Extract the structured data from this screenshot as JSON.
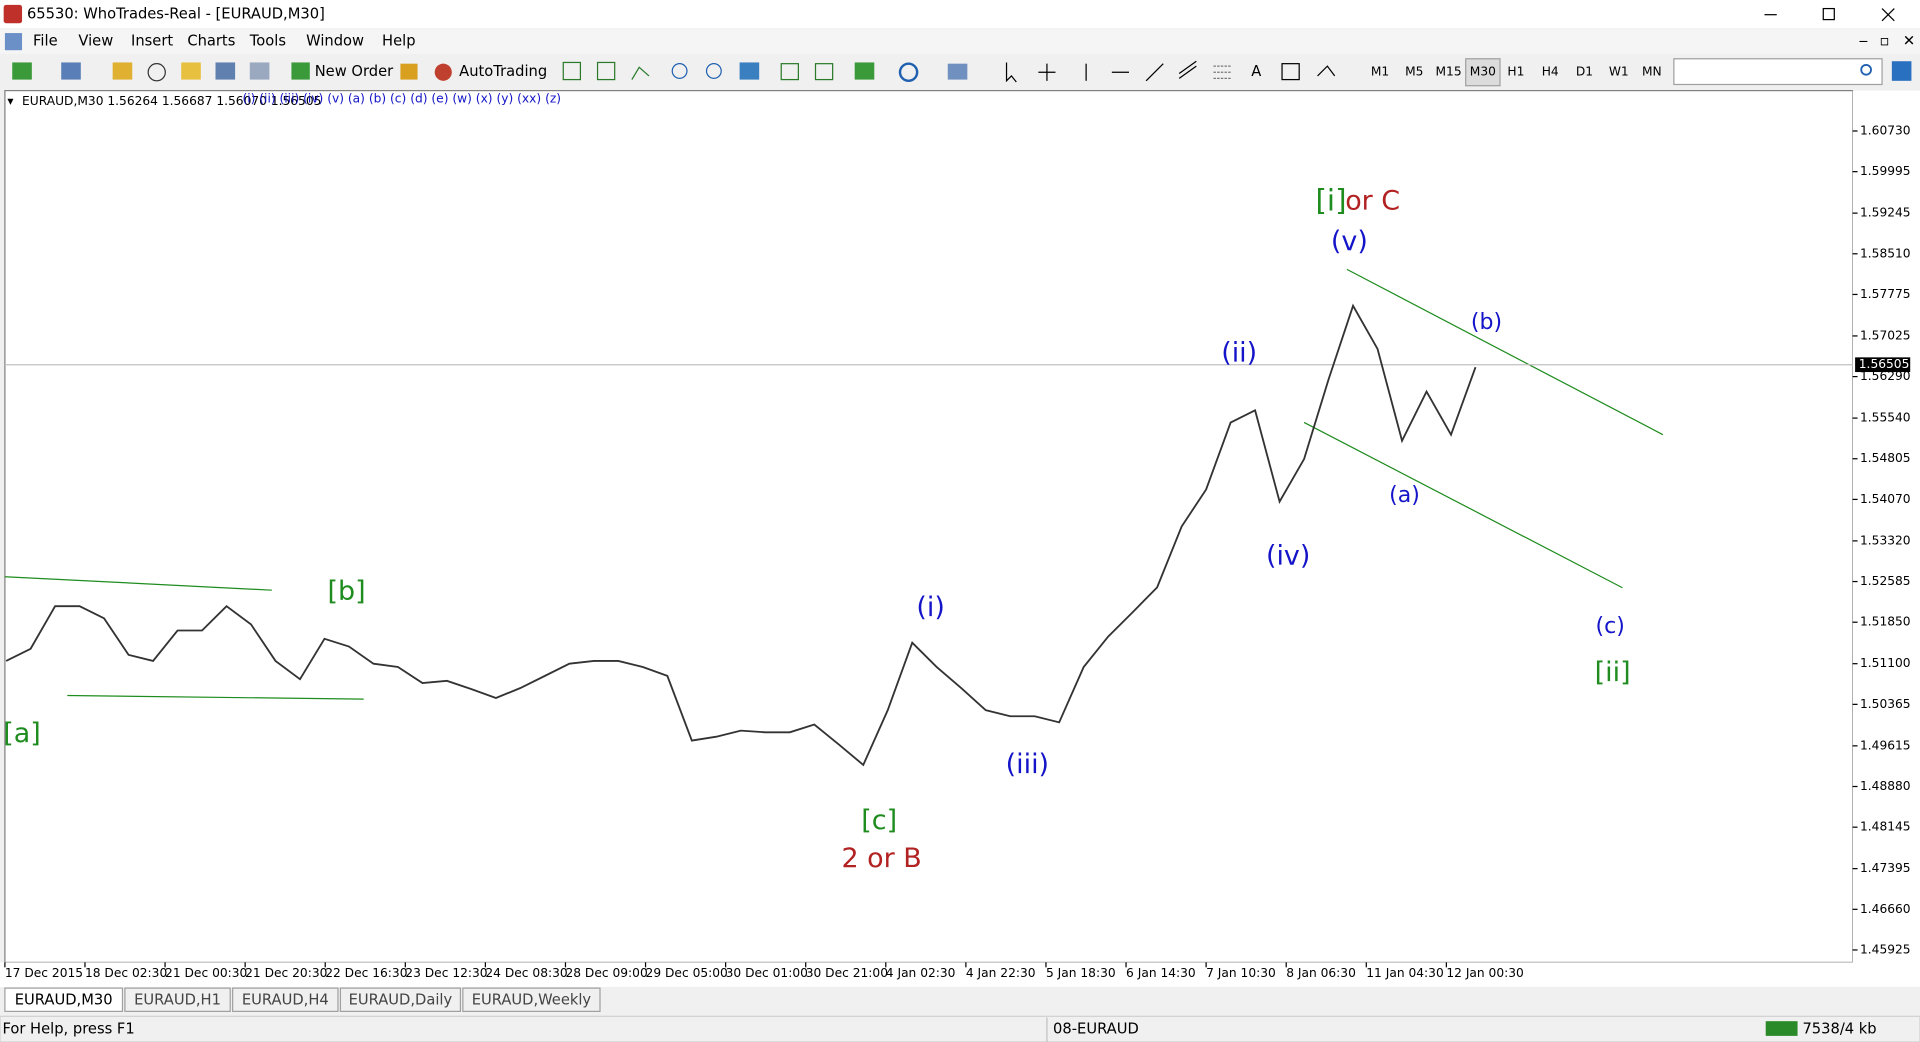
{
  "window": {
    "title": "65530: WhoTrades-Real - [EURAUD,M30]"
  },
  "menu": [
    "File",
    "View",
    "Insert",
    "Charts",
    "Tools",
    "Window",
    "Help"
  ],
  "toolbar": {
    "new_order": "New Order",
    "auto_trading": "AutoTrading",
    "timeframes": [
      "M1",
      "M5",
      "M15",
      "M30",
      "H1",
      "H4",
      "D1",
      "W1",
      "MN"
    ]
  },
  "chart": {
    "header": "EURAUD,M30  1.56264 1.56687 1.56070 1.56505",
    "wave_tools": "(i) (ii) (iii) (iv) (v) (a) (b) (c) (d) (e) (w) (x) (y) (xx) (z)",
    "ylim": [
      1.457,
      1.6146
    ],
    "price_ticks": [
      {
        "value": 1.6073,
        "label": "1.60730"
      },
      1.59995,
      1.59245,
      {
        "value": 1.5851,
        "label": "1.58510"
      },
      1.57775,
      1.57025,
      {
        "value": 1.5629,
        "label": "1.56290"
      },
      {
        "value": 1.5554,
        "label": "1.55540"
      },
      1.54805,
      {
        "value": 1.5407,
        "label": "1.54070"
      },
      {
        "value": 1.5332,
        "label": "1.53320"
      },
      1.52585,
      {
        "value": 1.5185,
        "label": "1.51850"
      },
      {
        "value": 1.511,
        "label": "1.51100"
      },
      1.50365,
      1.49615,
      {
        "value": 1.4888,
        "label": "1.48880"
      },
      1.48145,
      1.47395,
      {
        "value": 1.4666,
        "label": "1.46660"
      },
      1.45925
    ],
    "current_price": 1.56505,
    "time_labels": [
      "17 Dec 2015",
      "18 Dec 02:30",
      "21 Dec 00:30",
      "21 Dec 20:30",
      "22 Dec 16:30",
      "23 Dec 12:30",
      "24 Dec 08:30",
      "28 Dec 09:00",
      "29 Dec 05:00",
      "30 Dec 01:00",
      "30 Dec 21:00",
      "4 Jan 02:30",
      "4 Jan 22:30",
      "5 Jan 18:30",
      "6 Jan 14:30",
      "7 Jan 10:30",
      "8 Jan 06:30",
      "11 Jan 04:30",
      "12 Jan 00:30"
    ],
    "closes": [
      1.5115,
      1.5137,
      1.5214,
      1.5214,
      1.5192,
      1.5126,
      1.5115,
      1.517,
      1.517,
      1.5214,
      1.5181,
      1.5115,
      1.5082,
      1.5155,
      1.5141,
      1.511,
      1.5104,
      1.5075,
      1.5079,
      1.5064,
      1.5048,
      1.5066,
      1.5088,
      1.511,
      1.5115,
      1.5115,
      1.5104,
      1.5088,
      1.4971,
      1.4978,
      1.4989,
      1.4986,
      1.4986,
      1.5,
      1.4964,
      1.4927,
      1.5026,
      1.5148,
      1.5104,
      1.5066,
      1.5026,
      1.5015,
      1.5015,
      1.5004,
      1.5104,
      1.5159,
      1.5203,
      1.5248,
      1.5358,
      1.5425,
      1.5546,
      1.5568,
      1.5403,
      1.548,
      1.5624,
      1.5757,
      1.5679,
      1.5513,
      1.5602,
      1.5524,
      1.5646
    ],
    "line_color": "#333333",
    "wave_labels": [
      {
        "text": "[i]",
        "color": "#1e8c1e"
      },
      {
        "text": "or C",
        "color": "#b22222"
      },
      {
        "text": "(v)",
        "color": "#1414c8"
      },
      {
        "text": "(b)",
        "color": "#1414c8"
      },
      {
        "text": "(ii)",
        "color": "#1414c8"
      },
      {
        "text": "(a)",
        "color": "#1414c8"
      },
      {
        "text": "(iv)",
        "color": "#1414c8"
      },
      {
        "text": "(c)",
        "color": "#1414c8"
      },
      {
        "text": "[ii]",
        "color": "#1e8c1e"
      },
      {
        "text": "[b]",
        "color": "#1e8c1e"
      },
      {
        "text": "(i)",
        "color": "#1414c8"
      },
      {
        "text": "[a]",
        "color": "#1e8c1e"
      },
      {
        "text": "(iii)",
        "color": "#1414c8"
      },
      {
        "text": "[c]",
        "color": "#1e8c1e"
      },
      {
        "text": "2 or B",
        "color": "#b22222"
      }
    ]
  },
  "tabs": [
    "EURAUD,M30",
    "EURAUD,H1",
    "EURAUD,H4",
    "EURAUD,Daily",
    "EURAUD,Weekly"
  ],
  "status": {
    "help": "For Help, press F1",
    "profile": "08-EURAUD",
    "traffic": "7538/4 kb"
  }
}
